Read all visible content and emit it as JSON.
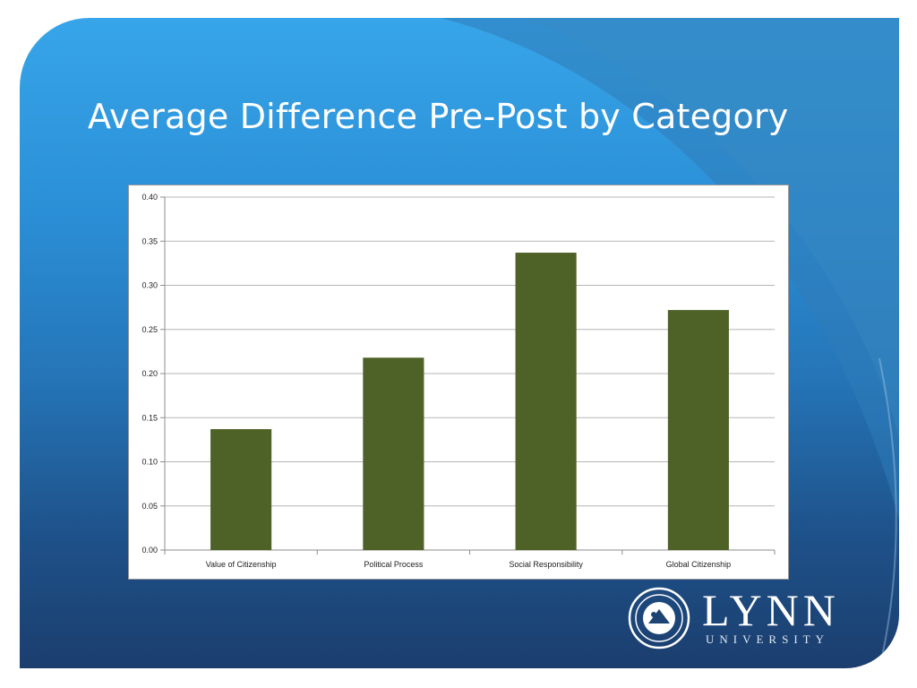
{
  "slide": {
    "title": "Average Difference Pre-Post by Category"
  },
  "logo": {
    "name": "LYNN",
    "sub": "UNIVERSITY"
  },
  "colors": {
    "bar": "#4e6126",
    "gridline": "#b5b5b5",
    "axis": "#8c8c8c",
    "tick_text": "#222222"
  },
  "chart_data": {
    "type": "bar",
    "categories": [
      "Value of Citizenship",
      "Political Process",
      "Social Responsibility",
      "Global Citizenship"
    ],
    "values": [
      0.137,
      0.218,
      0.337,
      0.272
    ],
    "y_ticks": [
      "0.00",
      "0.05",
      "0.10",
      "0.15",
      "0.20",
      "0.25",
      "0.30",
      "0.35",
      "0.40"
    ],
    "ylim": [
      0,
      0.4
    ],
    "grid": true,
    "legend": "none"
  }
}
